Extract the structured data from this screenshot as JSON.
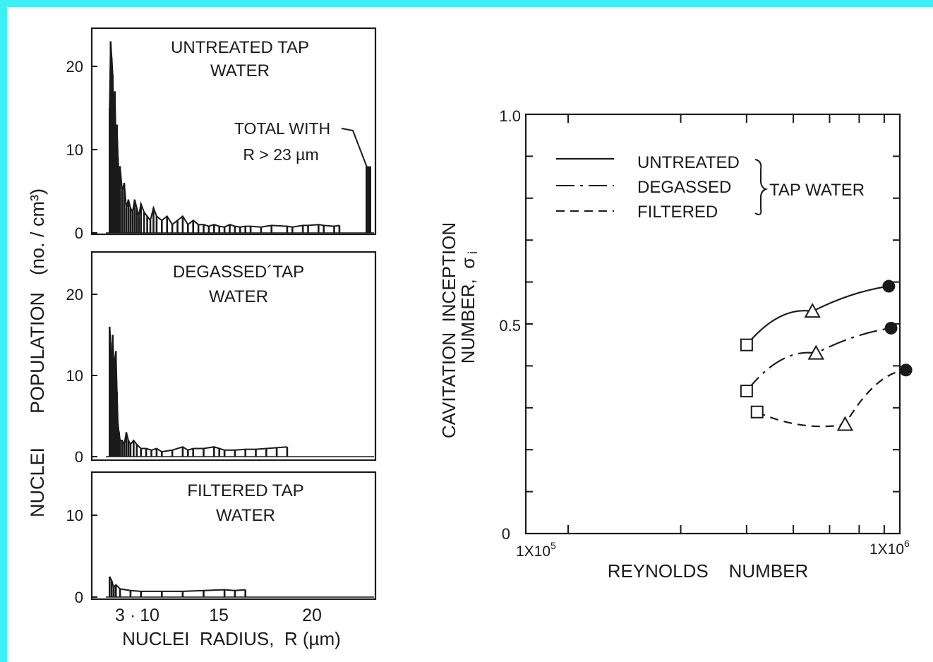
{
  "colors": {
    "background": "#3ef0f4",
    "paper": "#ffffff",
    "ink": "#1a1a1a"
  },
  "chart_data": [
    {
      "type": "bar",
      "panel": "histograms",
      "ylabel_lines": [
        "NUCLEI",
        "POPULATION",
        "(no. / cm³)"
      ],
      "xlabel": "NUCLEI  RADIUS,  R (µm)",
      "x_ticks": [
        "3",
        "10",
        "15",
        "20"
      ],
      "subplots": [
        {
          "title_lines": [
            "UNTREATED TAP",
            "WATER"
          ],
          "y_ticks": [
            "20",
            "10",
            "0"
          ],
          "ylim": [
            0,
            24
          ],
          "annotation_lines": [
            "TOTAL  WITH",
            "R > 23 µm"
          ],
          "total_above_23": 8,
          "x": [
            0.0,
            0.1,
            0.2,
            0.3,
            0.4,
            0.5,
            0.6,
            0.7,
            0.8,
            0.9,
            1.0,
            1.2,
            1.4,
            1.6,
            1.8,
            2.0,
            2.2,
            2.4,
            2.6,
            2.8,
            3.0,
            3.3,
            3.6,
            3.9,
            4.2,
            4.5,
            5.0,
            5.5,
            6.0,
            6.5,
            7.0,
            7.5,
            8.0,
            8.5,
            9.0,
            9.5,
            10.0,
            10.5,
            11.0,
            11.5,
            12.0,
            12.5,
            13.0,
            13.5,
            14.5,
            15.5,
            17.0,
            17.5,
            18.5,
            19.0,
            20.0,
            20.5,
            21.5,
            22.0
          ],
          "values": [
            15,
            23,
            21,
            19,
            14,
            17,
            11,
            13,
            9,
            7,
            8,
            5,
            6,
            3,
            4,
            3,
            2.5,
            4,
            3,
            2,
            3.5,
            2.5,
            2,
            1.5,
            3,
            2,
            1.5,
            2,
            1,
            1.5,
            2,
            1,
            1.5,
            1,
            1,
            0.8,
            1,
            0.8,
            0.7,
            1,
            0.8,
            0.7,
            0.8,
            0.8,
            0.7,
            0.9,
            0.8,
            0.7,
            0.9,
            0.9,
            1,
            0.9,
            0.8,
            0.9
          ]
        },
        {
          "title_lines": [
            "DEGASSED´TAP",
            "WATER"
          ],
          "y_ticks": [
            "20",
            "10",
            "0"
          ],
          "ylim": [
            0,
            24
          ],
          "x": [
            0.0,
            0.1,
            0.2,
            0.3,
            0.4,
            0.5,
            0.6,
            0.7,
            0.8,
            0.9,
            1.0,
            1.2,
            1.4,
            1.6,
            1.8,
            2.0,
            2.3,
            2.6,
            3.0,
            3.5,
            4.0,
            4.5,
            5.0,
            6.0,
            7.0,
            7.5,
            8.0,
            9.0,
            10.0,
            10.5,
            11.0,
            12.0,
            13.0,
            14.0,
            15.0,
            16.0,
            17.0
          ],
          "values": [
            16,
            14,
            10,
            15,
            11,
            12,
            13,
            8,
            4,
            3,
            2,
            2,
            1.5,
            3,
            2,
            1.5,
            2,
            1.5,
            1,
            1,
            0.8,
            1,
            0.6,
            0.8,
            1.2,
            0.8,
            1,
            1,
            1.2,
            1,
            0.8,
            0.8,
            0.9,
            0.9,
            1,
            1.1,
            1.2
          ]
        },
        {
          "title_lines": [
            "FILTERED TAP",
            "WATER"
          ],
          "y_ticks": [
            "10",
            "0"
          ],
          "ylim": [
            0,
            14
          ],
          "x": [
            0.0,
            0.2,
            0.4,
            0.6,
            1.0,
            2.0,
            3.0,
            5.0,
            7.0,
            9.0,
            11.0,
            12.0,
            13.0
          ],
          "values": [
            2.5,
            2,
            1.2,
            1.5,
            1,
            0.8,
            0.7,
            0.7,
            0.7,
            0.8,
            0.9,
            0.8,
            0.9
          ]
        }
      ]
    },
    {
      "type": "line",
      "panel": "cavitation",
      "ylabel_lines": [
        "CAVITATION  INCEPTION",
        "NUMBER,  σ",
        "i"
      ],
      "xlabel": "REYNOLDS    NUMBER",
      "x_tick_labels": [
        {
          "base": "1X10",
          "exp": "5"
        },
        {
          "base": "1X10",
          "exp": "6"
        }
      ],
      "y_tick_labels": [
        "1.0",
        "0.5",
        "0"
      ],
      "xlim": [
        100000,
        1000000
      ],
      "ylim": [
        0,
        1.0
      ],
      "x_scale": "log",
      "legend": {
        "entries": [
          "UNTREATED",
          "DEGASSED",
          "FILTERED"
        ],
        "group_label": "TAP WATER",
        "position": "top-left"
      },
      "series": [
        {
          "name": "UNTREATED",
          "style": "solid",
          "points": [
            {
              "x": 300000,
              "y": 0.45,
              "marker": "square"
            },
            {
              "x": 450000,
              "y": 0.53,
              "marker": "triangle"
            },
            {
              "x": 720000,
              "y": 0.59,
              "marker": "circle"
            }
          ]
        },
        {
          "name": "DEGASSED",
          "style": "dashdot",
          "points": [
            {
              "x": 300000,
              "y": 0.34,
              "marker": "square"
            },
            {
              "x": 460000,
              "y": 0.43,
              "marker": "triangle"
            },
            {
              "x": 730000,
              "y": 0.49,
              "marker": "circle"
            }
          ]
        },
        {
          "name": "FILTERED",
          "style": "dashed",
          "points": [
            {
              "x": 320000,
              "y": 0.29,
              "marker": "square"
            },
            {
              "x": 550000,
              "y": 0.26,
              "marker": "triangle"
            },
            {
              "x": 800000,
              "y": 0.39,
              "marker": "circle"
            }
          ]
        }
      ]
    }
  ]
}
